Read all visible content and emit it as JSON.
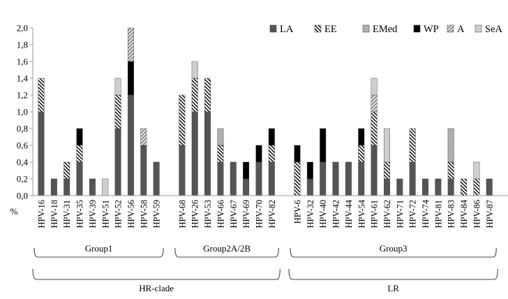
{
  "chart_data": {
    "type": "bar",
    "stacked": true,
    "ylabel": "%",
    "ylim": [
      0,
      2.0
    ],
    "ytick_step": 0.2,
    "ytick_labels": [
      "0,0",
      "0,2",
      "0,4",
      "0,6",
      "0,8",
      "1,0",
      "1,2",
      "1,4",
      "1,6",
      "1,8",
      "2,0"
    ],
    "grid": false,
    "legend_position": "top-right",
    "categories": [
      "HPV-16",
      "HPV-18",
      "HPV-31",
      "HPV-35",
      "HPV-39",
      "HPV-51",
      "HPV-52",
      "HPV-56",
      "HPV-58",
      "HPV-59",
      "HPV-68",
      "HPV-26",
      "HPV-53",
      "HPV-66",
      "HPV-67",
      "HPV-69",
      "HPV-70",
      "HPV-82",
      "HPV-6",
      "HPV-32",
      "HPV-40",
      "HPV-42",
      "HPV-44",
      "HPV-54",
      "HPV-61",
      "HPV-62",
      "HPV-71",
      "HPV-72",
      "HPV-74",
      "HPV-81",
      "HPV-83",
      "HPV-84",
      "HPV-86",
      "HPV-87"
    ],
    "series": [
      {
        "name": "LA",
        "color": "#555555",
        "pattern": "solid",
        "values": [
          1.0,
          0.2,
          0.2,
          0.4,
          0.2,
          0,
          0.8,
          1.2,
          0.6,
          0.4,
          0.6,
          1.0,
          1.0,
          0.4,
          0.4,
          0.2,
          0.4,
          0.4,
          0,
          0.2,
          0.4,
          0.4,
          0.4,
          0.4,
          0.6,
          0.2,
          0.2,
          0.4,
          0.2,
          0.2,
          0.2,
          0,
          0,
          0.2
        ]
      },
      {
        "name": "EE",
        "color": "#000000",
        "pattern": "backslash-hatch",
        "values": [
          0.4,
          0,
          0.2,
          0.2,
          0,
          0,
          0.4,
          0,
          0,
          0,
          0.6,
          0.4,
          0.4,
          0.2,
          0,
          0,
          0,
          0.2,
          0.4,
          0,
          0,
          0,
          0,
          0.2,
          0.4,
          0.2,
          0,
          0.4,
          0,
          0,
          0.2,
          0.2,
          0.2,
          0
        ]
      },
      {
        "name": "EMed",
        "color": "#9a9a9a",
        "pattern": "dotted",
        "values": [
          0,
          0,
          0,
          0,
          0,
          0,
          0,
          0,
          0,
          0,
          0,
          0,
          0,
          0.2,
          0,
          0,
          0,
          0,
          0,
          0,
          0,
          0,
          0,
          0,
          0,
          0,
          0,
          0,
          0,
          0,
          0.4,
          0,
          0,
          0
        ]
      },
      {
        "name": "WP",
        "color": "#000000",
        "pattern": "solid",
        "values": [
          0,
          0,
          0,
          0.2,
          0,
          0,
          0,
          0.4,
          0,
          0,
          0,
          0,
          0,
          0,
          0,
          0.2,
          0.2,
          0.2,
          0.2,
          0.2,
          0.4,
          0,
          0,
          0.2,
          0,
          0,
          0,
          0,
          0,
          0,
          0,
          0,
          0,
          0
        ]
      },
      {
        "name": "A",
        "color": "#555555",
        "pattern": "slash-hatch",
        "values": [
          0,
          0,
          0,
          0,
          0,
          0,
          0,
          0.4,
          0.2,
          0,
          0,
          0,
          0,
          0,
          0,
          0,
          0,
          0,
          0,
          0,
          0,
          0,
          0,
          0,
          0.2,
          0,
          0,
          0,
          0,
          0,
          0,
          0,
          0,
          0
        ]
      },
      {
        "name": "SeA",
        "color": "#cfcfcf",
        "pattern": "solid",
        "values": [
          0,
          0,
          0,
          0,
          0,
          0.2,
          0.2,
          0,
          0,
          0,
          0,
          0.2,
          0,
          0,
          0,
          0,
          0,
          0,
          0,
          0,
          0,
          0,
          0,
          0,
          0.2,
          0.4,
          0,
          0,
          0,
          0,
          0,
          0,
          0.2,
          0
        ]
      }
    ],
    "groups": [
      {
        "label": "Group1",
        "first": 0,
        "last": 9
      },
      {
        "label": "Group2A/2B",
        "first": 10,
        "last": 17
      },
      {
        "label": "Group3",
        "first": 18,
        "last": 33
      }
    ],
    "clades": [
      {
        "label": "HR-clade",
        "first": 0,
        "last": 17
      },
      {
        "label": "LR",
        "first": 18,
        "last": 33
      }
    ]
  }
}
